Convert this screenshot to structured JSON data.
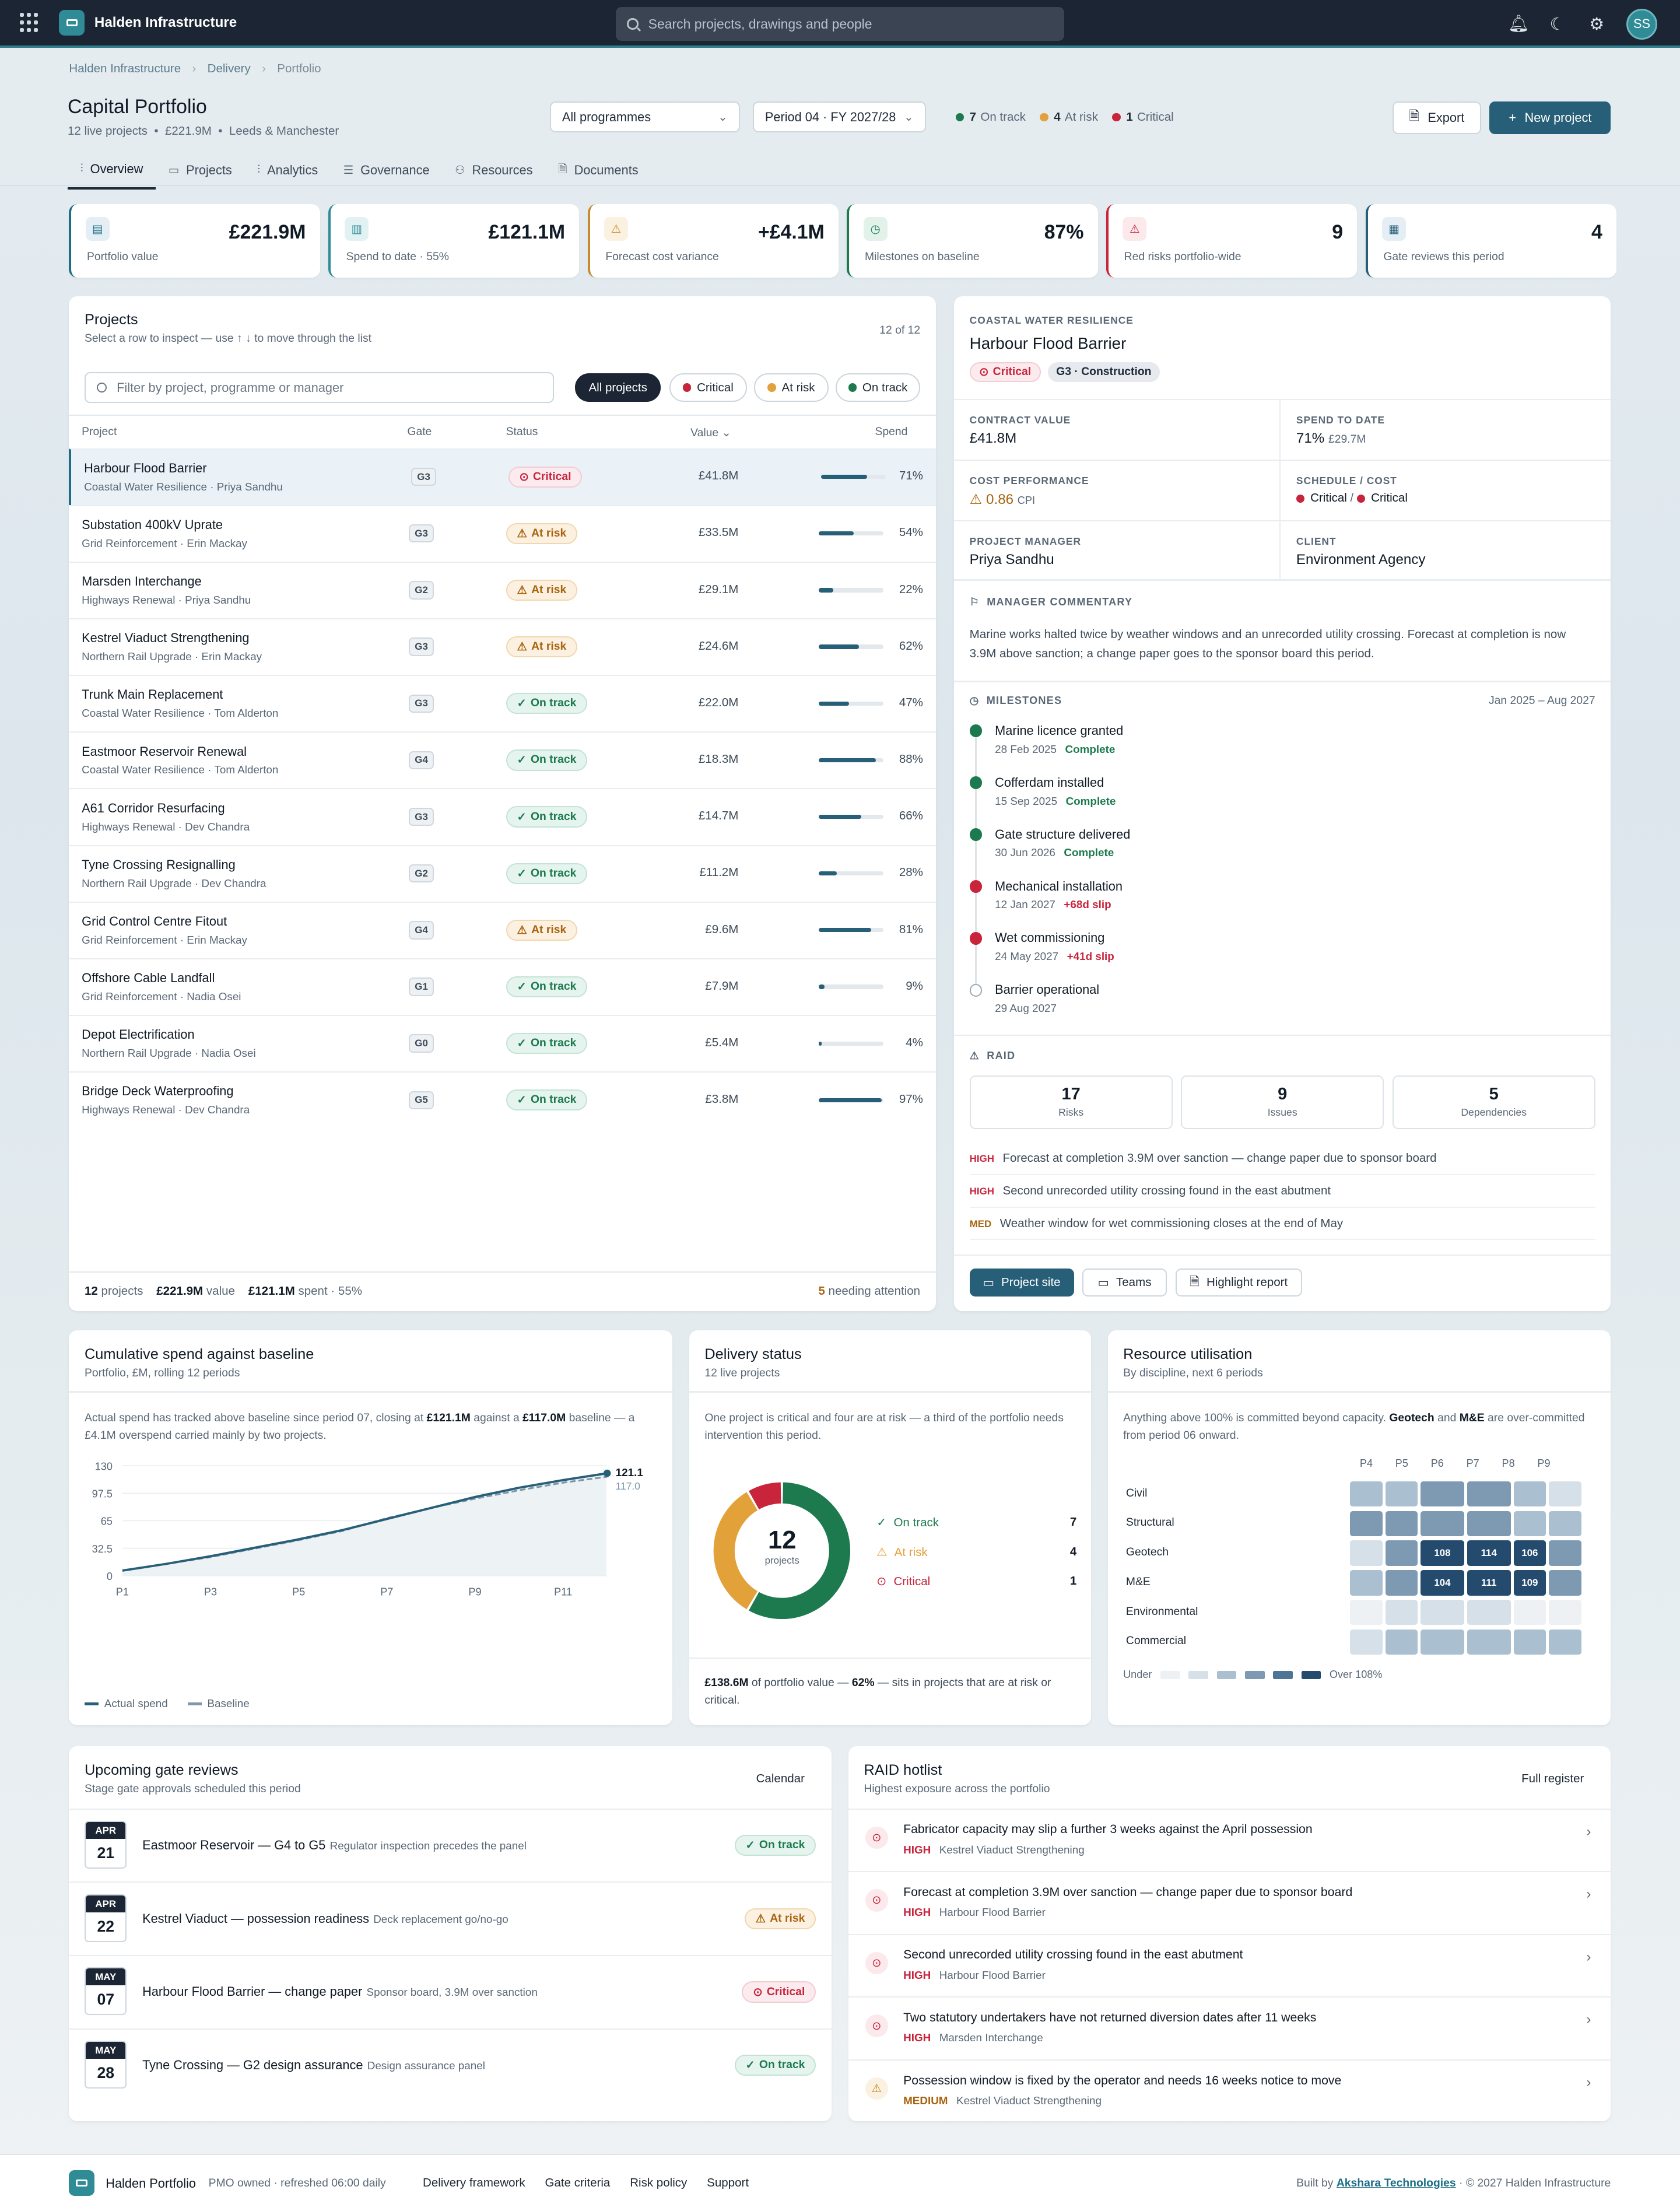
{
  "app": {
    "title": "Halden Infrastructure",
    "search_placeholder": "Search projects, drawings and people",
    "avatar": "SS"
  },
  "breadcrumb": [
    "Halden Infrastructure",
    "Delivery",
    "Portfolio"
  ],
  "page": {
    "title": "Capital Portfolio",
    "sub_count": "12 live projects",
    "sub_value": "£221.9M",
    "sub_location": "Leeds & Manchester"
  },
  "filters": {
    "programme": "All programmes",
    "period": "Period 04 · FY 2027/28"
  },
  "status_summary": [
    {
      "count": "7",
      "label": "On track",
      "color": "#1c7a4e"
    },
    {
      "count": "4",
      "label": "At risk",
      "color": "#e3a13a"
    },
    {
      "count": "1",
      "label": "Critical",
      "color": "#c8253d"
    }
  ],
  "actions": {
    "export": "Export",
    "new_project": "New project"
  },
  "tabs": [
    {
      "label": "Overview",
      "icon": "chart-icon"
    },
    {
      "label": "Projects",
      "icon": "folder-icon"
    },
    {
      "label": "Analytics",
      "icon": "bars-icon"
    },
    {
      "label": "Governance",
      "icon": "table-icon"
    },
    {
      "label": "Resources",
      "icon": "people-icon"
    },
    {
      "label": "Documents",
      "icon": "document-icon"
    }
  ],
  "kpis": [
    {
      "value": "£221.9M",
      "label": "Portfolio value",
      "icon": "wallet-icon",
      "color": "#1c6e86",
      "bg": "#e4eef4"
    },
    {
      "value": "£121.1M",
      "label": "Spend to date · 55%",
      "icon": "bar-chart-icon",
      "color": "#2f8b96",
      "bg": "#e2f1f1"
    },
    {
      "value": "+£4.1M",
      "label": "Forecast cost variance",
      "icon": "warning-icon",
      "color": "#c98a2b",
      "bg": "#fbf1e1"
    },
    {
      "value": "87%",
      "label": "Milestones on baseline",
      "icon": "clock-icon",
      "color": "#1c7a4e",
      "bg": "#e2f2ea"
    },
    {
      "value": "9",
      "label": "Red risks portfolio-wide",
      "icon": "warning-icon",
      "color": "#c8253d",
      "bg": "#fbe9ec"
    },
    {
      "value": "4",
      "label": "Gate reviews this period",
      "icon": "calendar-icon",
      "color": "#275f78",
      "bg": "#e4eef4"
    }
  ],
  "projects_card": {
    "title": "Projects",
    "subtitle": "Select a row to inspect — use ↑ ↓ to move through the list",
    "count": "12 of 12",
    "filter_placeholder": "Filter by project, programme or manager",
    "chips": [
      "All projects",
      "Critical",
      "At risk",
      "On track"
    ],
    "columns": [
      "Project",
      "Gate",
      "Status",
      "Value",
      "Spend"
    ],
    "rows": [
      {
        "name": "Harbour Flood Barrier",
        "sub": "Coastal Water Resilience · Priya Sandhu",
        "gate": "G3",
        "status": "Critical",
        "value": "£41.8M",
        "spend": 71
      },
      {
        "name": "Substation 400kV Uprate",
        "sub": "Grid Reinforcement · Erin Mackay",
        "gate": "G3",
        "status": "At risk",
        "value": "£33.5M",
        "spend": 54
      },
      {
        "name": "Marsden Interchange",
        "sub": "Highways Renewal · Priya Sandhu",
        "gate": "G2",
        "status": "At risk",
        "value": "£29.1M",
        "spend": 22
      },
      {
        "name": "Kestrel Viaduct Strengthening",
        "sub": "Northern Rail Upgrade · Erin Mackay",
        "gate": "G3",
        "status": "At risk",
        "value": "£24.6M",
        "spend": 62
      },
      {
        "name": "Trunk Main Replacement",
        "sub": "Coastal Water Resilience · Tom Alderton",
        "gate": "G3",
        "status": "On track",
        "value": "£22.0M",
        "spend": 47
      },
      {
        "name": "Eastmoor Reservoir Renewal",
        "sub": "Coastal Water Resilience · Tom Alderton",
        "gate": "G4",
        "status": "On track",
        "value": "£18.3M",
        "spend": 88
      },
      {
        "name": "A61 Corridor Resurfacing",
        "sub": "Highways Renewal · Dev Chandra",
        "gate": "G3",
        "status": "On track",
        "value": "£14.7M",
        "spend": 66
      },
      {
        "name": "Tyne Crossing Resignalling",
        "sub": "Northern Rail Upgrade · Dev Chandra",
        "gate": "G2",
        "status": "On track",
        "value": "£11.2M",
        "spend": 28
      },
      {
        "name": "Grid Control Centre Fitout",
        "sub": "Grid Reinforcement · Erin Mackay",
        "gate": "G4",
        "status": "At risk",
        "value": "£9.6M",
        "spend": 81
      },
      {
        "name": "Offshore Cable Landfall",
        "sub": "Grid Reinforcement · Nadia Osei",
        "gate": "G1",
        "status": "On track",
        "value": "£7.9M",
        "spend": 9
      },
      {
        "name": "Depot Electrification",
        "sub": "Northern Rail Upgrade · Nadia Osei",
        "gate": "G0",
        "status": "On track",
        "value": "£5.4M",
        "spend": 4
      },
      {
        "name": "Bridge Deck Waterproofing",
        "sub": "Highways Renewal · Dev Chandra",
        "gate": "G5",
        "status": "On track",
        "value": "£3.8M",
        "spend": 97
      }
    ],
    "footer": {
      "projects": "12",
      "projects_l": "projects",
      "value": "£221.9M",
      "value_l": "value",
      "spent": "£121.1M",
      "spent_l": "spent · 55%",
      "attention": "5",
      "attention_l": "needing attention"
    }
  },
  "detail": {
    "programme": "COASTAL WATER RESILIENCE",
    "name": "Harbour Flood Barrier",
    "status": "Critical",
    "gate": "G3 · Construction",
    "contract_label": "CONTRACT VALUE",
    "contract_value": "£41.8M",
    "spend_label": "SPEND TO DATE",
    "spend_value": "71%",
    "spend_sub": "£29.7M",
    "cost_label": "COST PERFORMANCE",
    "cost_value": "0.86",
    "cost_unit": "CPI",
    "sched_label": "SCHEDULE / COST",
    "sched_a": "Critical",
    "sched_sep": "/",
    "sched_b": "Critical",
    "pm_label": "PROJECT MANAGER",
    "pm_value": "Priya Sandhu",
    "client_label": "CLIENT",
    "client_value": "Environment Agency",
    "commentary_title": "MANAGER COMMENTARY",
    "commentary": "Marine works halted twice by weather windows and an unrecorded utility crossing. Forecast at completion is now 3.9M above sanction; a change paper goes to the sponsor board this period.",
    "milestones_title": "MILESTONES",
    "milestones_range": "Jan 2025 – Aug 2027",
    "milestones": [
      {
        "title": "Marine licence granted",
        "date": "28 Feb 2025",
        "state": "Complete",
        "kind": "done"
      },
      {
        "title": "Cofferdam installed",
        "date": "15 Sep 2025",
        "state": "Complete",
        "kind": "done"
      },
      {
        "title": "Gate structure delivered",
        "date": "30 Jun 2026",
        "state": "Complete",
        "kind": "done"
      },
      {
        "title": "Mechanical installation",
        "date": "12 Jan 2027",
        "state": "+68d slip",
        "kind": "slip"
      },
      {
        "title": "Wet commissioning",
        "date": "24 May 2027",
        "state": "+41d slip",
        "kind": "slip"
      },
      {
        "title": "Barrier operational",
        "date": "29 Aug 2027",
        "state": "",
        "kind": "todo"
      }
    ],
    "raid_title": "RAID",
    "raid_counts": [
      {
        "n": "17",
        "l": "Risks"
      },
      {
        "n": "9",
        "l": "Issues"
      },
      {
        "n": "5",
        "l": "Dependencies"
      }
    ],
    "raid_items": [
      {
        "level": "HIGH",
        "text": "Forecast at completion 3.9M over sanction — change paper due to sponsor board"
      },
      {
        "level": "HIGH",
        "text": "Second unrecorded utility crossing found in the east abutment"
      },
      {
        "level": "MED",
        "text": "Weather window for wet commissioning closes at the end of May"
      }
    ],
    "buttons": [
      "Project site",
      "Teams",
      "Highlight report"
    ]
  },
  "spend_chart": {
    "title": "Cumulative spend against baseline",
    "subtitle": "Portfolio, £M, rolling 12 periods",
    "text_a": "Actual spend has tracked above baseline since period 07, closing at ",
    "text_b": "£121.1M",
    "text_c": " against a ",
    "text_d": "£117.0M",
    "text_e": " baseline — a £4.1M overspend carried mainly by two projects."
  },
  "chart_data": {
    "type": "line",
    "x": [
      "P1",
      "P2",
      "P3",
      "P4",
      "P5",
      "P6",
      "P7",
      "P8",
      "P9",
      "P10",
      "P11",
      "P12"
    ],
    "xticks": [
      "P1",
      "P3",
      "P5",
      "P7",
      "P9",
      "P11"
    ],
    "yticks": [
      "0",
      "32.5",
      "65",
      "97.5",
      "130"
    ],
    "ylim": [
      0,
      130
    ],
    "series": [
      {
        "name": "Actual spend",
        "values": [
          6,
          14,
          23,
          33,
          43,
          54,
          67,
          80,
          93,
          104,
          113,
          121.1
        ]
      },
      {
        "name": "Baseline",
        "values": [
          6,
          14,
          22,
          32,
          42,
          53,
          68,
          80,
          91,
          101,
          110,
          117.0
        ]
      }
    ],
    "end_labels": [
      "121.1",
      "117.0"
    ]
  },
  "delivery": {
    "title": "Delivery status",
    "subtitle": "12 live projects",
    "text": "One project is critical and four are at risk — a third of the portfolio needs intervention this period.",
    "center_n": "12",
    "center_l": "projects",
    "items": [
      {
        "label": "On track",
        "n": 7,
        "color": "#1c7a4e"
      },
      {
        "label": "At risk",
        "n": 4,
        "color": "#e3a13a"
      },
      {
        "label": "Critical",
        "n": 1,
        "color": "#c8253d"
      }
    ],
    "foot_a": "£138.6M",
    "foot_b": " of portfolio value — ",
    "foot_c": "62%",
    "foot_d": " — sits in projects that are at risk or critical."
  },
  "resource": {
    "title": "Resource utilisation",
    "subtitle": "By discipline, next 6 periods",
    "text_a": "Anything above 100% is committed beyond capacity. ",
    "text_b": "Geotech",
    "text_c": " and ",
    "text_d": "M&E",
    "text_e": " are over-committed from period 06 onward.",
    "periods": [
      "P4",
      "P5",
      "P6",
      "P7",
      "P8",
      "P9"
    ],
    "rows": [
      {
        "name": "Civil",
        "vals": [
          2,
          2,
          3,
          3,
          2,
          1
        ]
      },
      {
        "name": "Structural",
        "vals": [
          3,
          3,
          3,
          3,
          2,
          2
        ]
      },
      {
        "name": "Geotech",
        "vals": [
          1,
          3,
          "108",
          "114",
          "106",
          3
        ]
      },
      {
        "name": "M&E",
        "vals": [
          2,
          3,
          "104",
          "111",
          "109",
          3
        ]
      },
      {
        "name": "Environmental",
        "vals": [
          0,
          1,
          1,
          1,
          0,
          0
        ]
      },
      {
        "name": "Commercial",
        "vals": [
          1,
          2,
          2,
          2,
          2,
          2
        ]
      }
    ],
    "legend_under": "Under",
    "legend_over": "Over 108%"
  },
  "gates": {
    "title": "Upcoming gate reviews",
    "subtitle": "Stage gate approvals scheduled this period",
    "action": "Calendar",
    "items": [
      {
        "month": "APR",
        "day": "21",
        "title": "Eastmoor Reservoir — G4 to G5",
        "note": "Regulator inspection precedes the panel",
        "status": "On track"
      },
      {
        "month": "APR",
        "day": "22",
        "title": "Kestrel Viaduct — possession readiness",
        "note": "Deck replacement go/no-go",
        "status": "At risk"
      },
      {
        "month": "MAY",
        "day": "07",
        "title": "Harbour Flood Barrier — change paper",
        "note": "Sponsor board, 3.9M over sanction",
        "status": "Critical"
      },
      {
        "month": "MAY",
        "day": "28",
        "title": "Tyne Crossing — G2 design assurance",
        "note": "Design assurance panel",
        "status": "On track"
      }
    ]
  },
  "hotlist": {
    "title": "RAID hotlist",
    "subtitle": "Highest exposure across the portfolio",
    "action": "Full register",
    "items": [
      {
        "title": "Fabricator capacity may slip a further 3 weeks against the April possession",
        "level": "HIGH",
        "project": "Kestrel Viaduct Strengthening"
      },
      {
        "title": "Forecast at completion 3.9M over sanction — change paper due to sponsor board",
        "level": "HIGH",
        "project": "Harbour Flood Barrier"
      },
      {
        "title": "Second unrecorded utility crossing found in the east abutment",
        "level": "HIGH",
        "project": "Harbour Flood Barrier"
      },
      {
        "title": "Two statutory undertakers have not returned diversion dates after 11 weeks",
        "level": "HIGH",
        "project": "Marsden Interchange"
      },
      {
        "title": "Possession window is fixed by the operator and needs 16 weeks notice to move",
        "level": "MEDIUM",
        "project": "Kestrel Viaduct Strengthening"
      }
    ]
  },
  "footer": {
    "brand": "Halden Portfolio",
    "meta": "PMO owned · refreshed 06:00 daily",
    "links": [
      "Delivery framework",
      "Gate criteria",
      "Risk policy",
      "Support"
    ],
    "built": "Built by",
    "builder": "Akshara Technologies",
    "copyright": "· © 2027 Halden Infrastructure"
  }
}
